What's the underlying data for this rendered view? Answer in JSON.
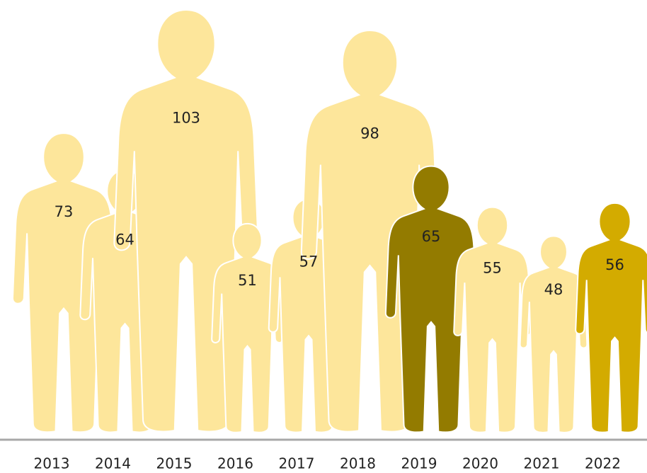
{
  "chart_data": {
    "type": "pictograph",
    "categories": [
      "2013",
      "2014",
      "2015",
      "2016",
      "2017",
      "2018",
      "2019",
      "2020",
      "2021",
      "2022"
    ],
    "values": [
      73,
      64,
      103,
      51,
      57,
      98,
      65,
      55,
      48,
      56
    ],
    "colors": [
      "#fde69b",
      "#fde69b",
      "#fde69b",
      "#fde69b",
      "#fde69b",
      "#fde69b",
      "#937b00",
      "#fde69b",
      "#fde69b",
      "#d3ab00"
    ]
  }
}
